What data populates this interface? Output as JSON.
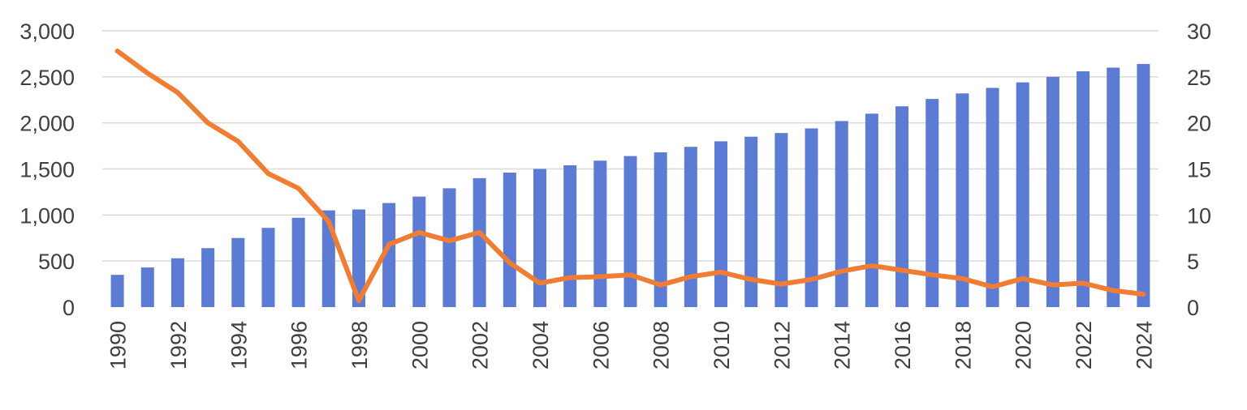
{
  "chart_data": {
    "type": "bar",
    "title": "",
    "xlabel": "",
    "ylabel": "",
    "grid": true,
    "legend": "none",
    "categories": [
      "1990",
      "1991",
      "1992",
      "1993",
      "1994",
      "1995",
      "1996",
      "1997",
      "1998",
      "1999",
      "2000",
      "2001",
      "2002",
      "2003",
      "2004",
      "2005",
      "2006",
      "2007",
      "2008",
      "2009",
      "2010",
      "2011",
      "2012",
      "2013",
      "2014",
      "2015",
      "2016",
      "2017",
      "2018",
      "2019",
      "2020",
      "2021",
      "2022",
      "2023",
      "2024"
    ],
    "x_tick_labels": [
      "1990",
      "1992",
      "1994",
      "1996",
      "1998",
      "2000",
      "2002",
      "2004",
      "2006",
      "2008",
      "2010",
      "2012",
      "2014",
      "2016",
      "2018",
      "2020",
      "2022",
      "2024"
    ],
    "y_left": {
      "ylim": [
        0,
        3000
      ],
      "ticks": [
        0,
        500,
        1000,
        1500,
        2000,
        2500,
        3000
      ],
      "tick_labels": [
        "0",
        "500",
        "1,000",
        "1,500",
        "2,000",
        "2,500",
        "3,000"
      ]
    },
    "y_right": {
      "ylim": [
        0,
        30
      ],
      "ticks": [
        0,
        5,
        10,
        15,
        20,
        25,
        30
      ],
      "tick_labels": [
        "0",
        "5",
        "10",
        "15",
        "20",
        "25",
        "30"
      ]
    },
    "series": [
      {
        "type": "bar",
        "axis": "left",
        "color": "#5b7bd5",
        "values": [
          350,
          430,
          530,
          640,
          750,
          860,
          970,
          1050,
          1060,
          1130,
          1200,
          1290,
          1400,
          1460,
          1500,
          1540,
          1590,
          1640,
          1680,
          1740,
          1800,
          1850,
          1890,
          1940,
          2020,
          2100,
          2180,
          2260,
          2320,
          2380,
          2440,
          2500,
          2560,
          2600,
          2640
        ]
      },
      {
        "type": "line",
        "axis": "right",
        "color": "#f07d33",
        "values": [
          27.8,
          25.4,
          23.3,
          20.0,
          18.0,
          14.5,
          12.9,
          9.3,
          0.7,
          6.8,
          8.1,
          7.2,
          8.1,
          4.8,
          2.6,
          3.2,
          3.3,
          3.5,
          2.4,
          3.3,
          3.8,
          3.0,
          2.5,
          3.0,
          3.9,
          4.5,
          4.0,
          3.5,
          3.1,
          2.2,
          3.1,
          2.4,
          2.6,
          1.8,
          1.4
        ]
      }
    ]
  }
}
